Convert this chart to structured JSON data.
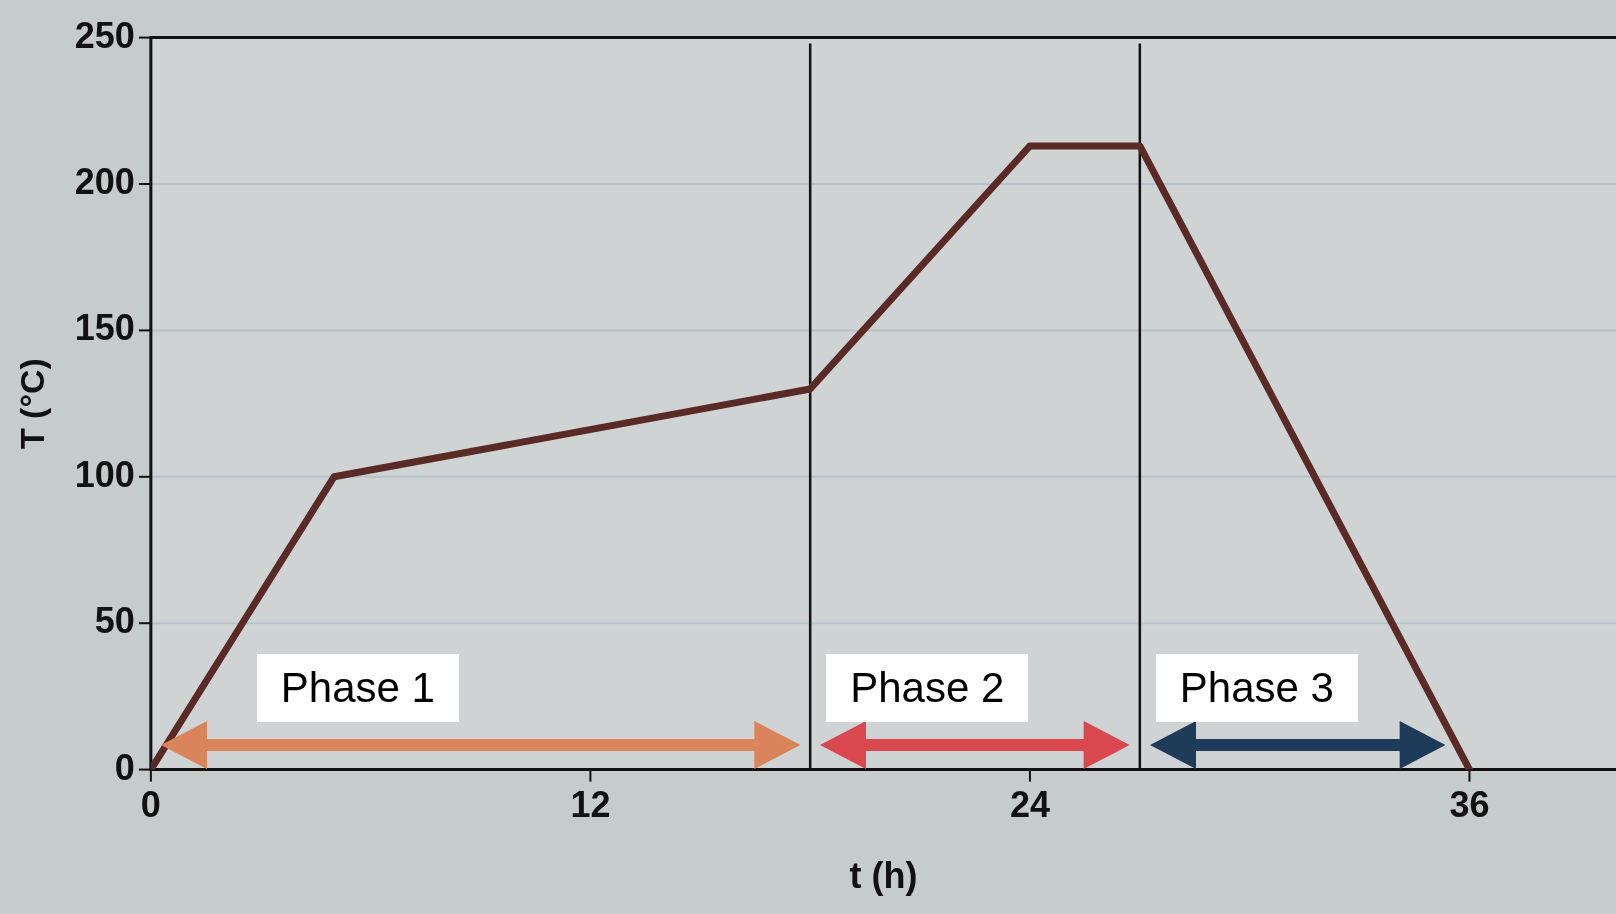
{
  "chart_data": {
    "type": "line",
    "xlabel": "t (h)",
    "ylabel": "T (°C)",
    "series": [
      {
        "color": "#5a2a26",
        "x": [
          0,
          5,
          18,
          24,
          27,
          36
        ],
        "values": [
          0,
          100,
          130,
          213,
          213,
          0
        ]
      }
    ],
    "xlim": [
      0,
      40
    ],
    "ylim": [
      0,
      250
    ],
    "xticks": [
      0,
      12,
      24,
      36
    ],
    "yticks": [
      0,
      50,
      100,
      150,
      200,
      250
    ],
    "grid": "y",
    "legend": false,
    "marker": "none",
    "line_style": "solid",
    "ref_lines": [
      {
        "axis": "x",
        "value": 18,
        "color": "#111111"
      },
      {
        "axis": "x",
        "value": 27,
        "color": "#111111"
      }
    ],
    "annotations": [
      "Phase 1",
      "Phase 2",
      "Phase 3"
    ]
  }
}
